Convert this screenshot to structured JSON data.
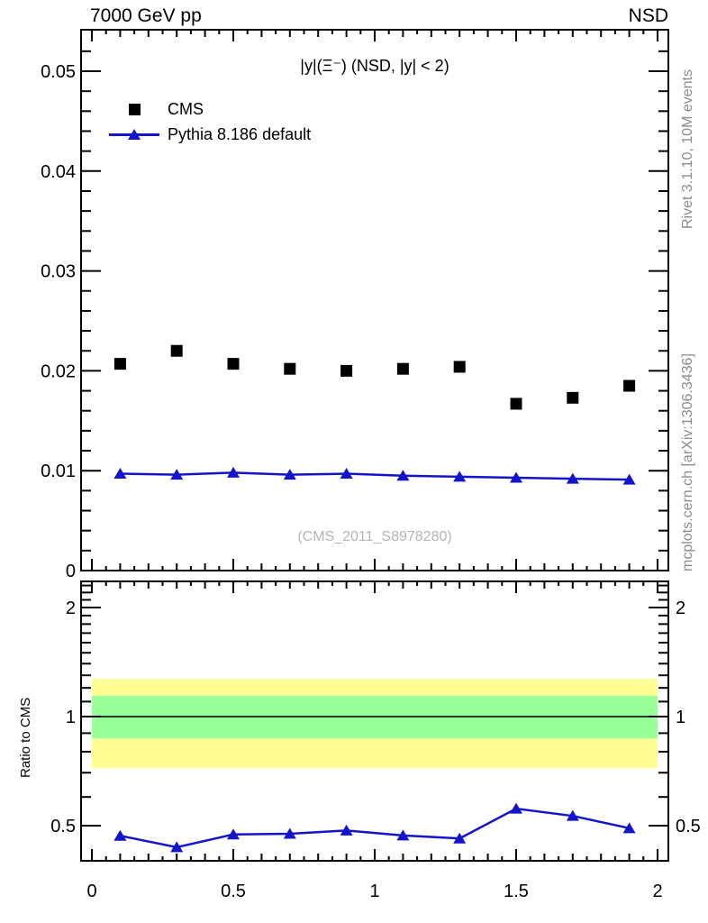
{
  "header": {
    "left": "7000 GeV pp",
    "right": "NSD"
  },
  "annotations": {
    "rivet": "Rivet 3.1.10,  10M events",
    "mcplots": "mcplots.cern.ch [arXiv:1306.3436]",
    "watermark": "(CMS_2011_S8978280)"
  },
  "ratio_ylabel": "Ratio to CMS",
  "colors": {
    "pythia_blue": "#1414cc",
    "band_yellow": "#ffff96",
    "band_green": "#99ff99",
    "gray_side_text": "#8c8c8c",
    "watermark_gray": "#b5b5b5"
  },
  "chart_data": [
    {
      "type": "scatter",
      "panel": "main",
      "title": "|y|(Ξ⁻) (NSD, |y| < 2)",
      "x": [
        0.1,
        0.3,
        0.5,
        0.7,
        0.9,
        1.1,
        1.3,
        1.5,
        1.7,
        1.9
      ],
      "series": [
        {
          "name": "CMS",
          "marker": "square",
          "color": "#000000",
          "line": false,
          "values": [
            0.0207,
            0.022,
            0.0207,
            0.0202,
            0.02,
            0.0202,
            0.0204,
            0.0167,
            0.0173,
            0.0185
          ]
        },
        {
          "name": "Pythia 8.186 default",
          "marker": "triangle",
          "color": "#1414cc",
          "line": true,
          "values": [
            0.0097,
            0.0096,
            0.0098,
            0.0096,
            0.0097,
            0.0095,
            0.0094,
            0.0093,
            0.0092,
            0.0091
          ]
        }
      ],
      "xlim": [
        -0.038,
        2.038
      ],
      "ylim": [
        0,
        0.054
      ],
      "grid": false,
      "legend_position": "top-left",
      "yticks": {
        "values": [
          0,
          0.01,
          0.02,
          0.03,
          0.04,
          0.05
        ],
        "labels": [
          "0",
          "0.01",
          "0.02",
          "0.03",
          "0.04",
          "0.05"
        ],
        "minor_step": 0.002
      },
      "xticks": {
        "values": [
          0,
          0.5,
          1,
          1.5,
          2
        ],
        "labels": [
          "0",
          "0.5",
          "1",
          "1.5",
          "2"
        ],
        "minor_step": 0.1,
        "sub_step": 0.05
      }
    },
    {
      "type": "line",
      "panel": "ratio",
      "ylabel": "Ratio to CMS",
      "yscale": "log",
      "xlim": [
        -0.038,
        2.038
      ],
      "ylim": [
        0.4,
        2.36
      ],
      "reference_line": 1.0,
      "bands": [
        {
          "color": "#ffff96",
          "range": [
            0.72,
            1.27
          ],
          "xrange": [
            0,
            2
          ]
        },
        {
          "color": "#99ff99",
          "range": [
            0.87,
            1.14
          ],
          "xrange": [
            0,
            2
          ]
        }
      ],
      "x": [
        0.1,
        0.3,
        0.5,
        0.7,
        0.9,
        1.1,
        1.3,
        1.5,
        1.7,
        1.9
      ],
      "series": [
        {
          "name": "Pythia 8.186 default / CMS",
          "marker": "triangle",
          "color": "#1414cc",
          "line": true,
          "values": [
            0.469,
            0.436,
            0.473,
            0.475,
            0.485,
            0.47,
            0.461,
            0.557,
            0.532,
            0.492
          ]
        }
      ],
      "yticks": {
        "values": [
          0.5,
          1,
          2
        ],
        "labels": [
          "0.5",
          "1",
          "2"
        ],
        "minor": [
          0.6,
          0.7,
          0.8,
          0.9,
          1.1,
          1.2,
          1.3,
          1.4,
          1.5,
          1.6,
          1.7,
          1.8,
          1.9,
          2.1,
          2.2,
          2.3
        ]
      },
      "xticks": {
        "values": [
          0,
          0.5,
          1,
          1.5,
          2
        ],
        "labels": [
          "0",
          "0.5",
          "1",
          "1.5",
          "2"
        ],
        "minor_step": 0.1,
        "sub_step": 0.05
      }
    }
  ]
}
